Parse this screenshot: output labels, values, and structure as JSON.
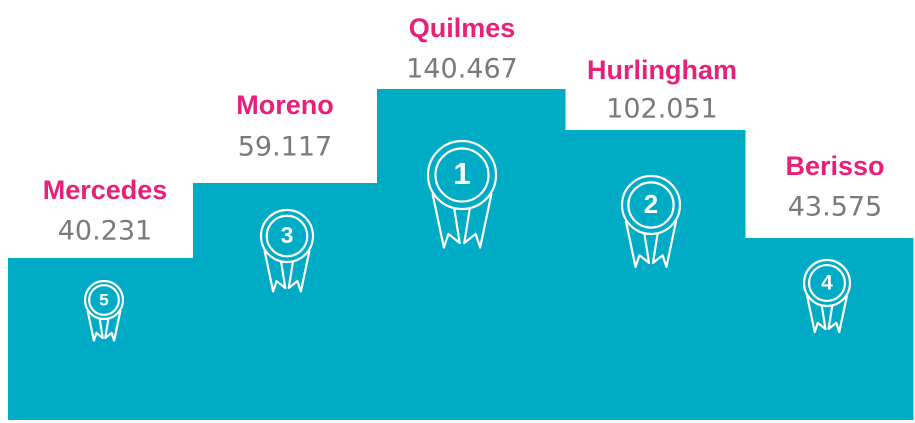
{
  "podium": [
    {
      "name": "Mercedes",
      "value": "40.231",
      "rank": 5
    },
    {
      "name": "Moreno",
      "value": "59.117",
      "rank": 3
    },
    {
      "name": "Quilmes",
      "value": "140.467",
      "rank": 1
    },
    {
      "name": "Hurlingham",
      "value": "102.051",
      "rank": 2
    },
    {
      "name": "Berisso",
      "value": "43.575",
      "rank": 4
    }
  ]
}
